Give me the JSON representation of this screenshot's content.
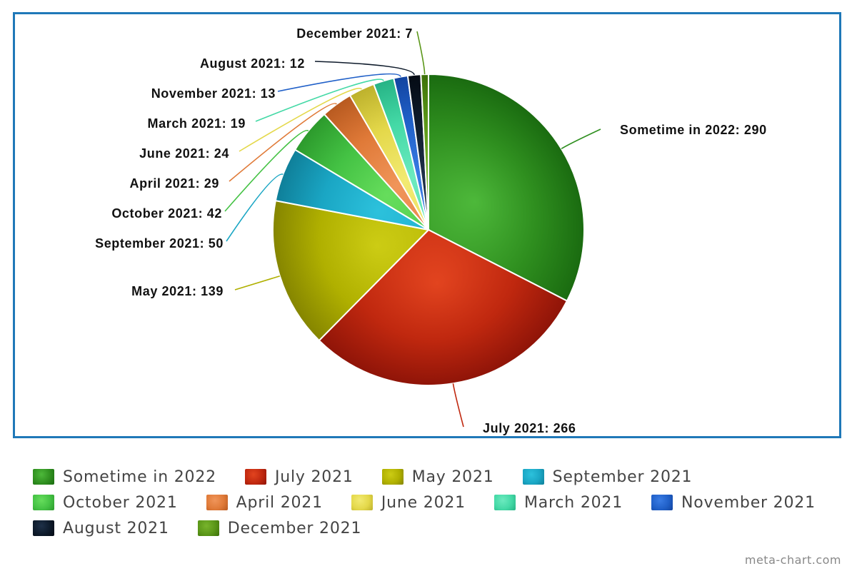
{
  "chart_data": {
    "type": "pie",
    "title": "",
    "start_category": "Sometime in 2022",
    "slices": [
      {
        "label": "Sometime in 2022",
        "value": 290,
        "data_label": "Sometime in 2022: 290",
        "color": "#2f8f1f",
        "color_light": "#4db83a",
        "color_dark": "#1a6b10"
      },
      {
        "label": "July 2021",
        "value": 266,
        "data_label": "July 2021: 266",
        "color": "#c0280f",
        "color_light": "#e2441f",
        "color_dark": "#8f1408"
      },
      {
        "label": "May 2021",
        "value": 139,
        "data_label": "May 2021: 139",
        "color": "#b0b000",
        "color_light": "#cccc14",
        "color_dark": "#858500"
      },
      {
        "label": "September 2021",
        "value": 50,
        "data_label": "September 2021: 50",
        "color": "#1aa6c4",
        "color_light": "#2cc1dc",
        "color_dark": "#0f7f99"
      },
      {
        "label": "October 2021",
        "value": 42,
        "data_label": "October 2021: 42",
        "color": "#44c244",
        "color_light": "#66dd5c",
        "color_dark": "#2c9a2c"
      },
      {
        "label": "April 2021",
        "value": 29,
        "data_label": "April 2021: 29",
        "color": "#e07a38",
        "color_light": "#f0955a",
        "color_dark": "#b85a20"
      },
      {
        "label": "June 2021",
        "value": 24,
        "data_label": "June 2021: 24",
        "color": "#e4d84a",
        "color_light": "#f2ea72",
        "color_dark": "#bdb12c"
      },
      {
        "label": "March 2021",
        "value": 19,
        "data_label": "March 2021: 19",
        "color": "#44d9a6",
        "color_light": "#6ceabf",
        "color_dark": "#26b385"
      },
      {
        "label": "November 2021",
        "value": 13,
        "data_label": "November 2021: 13",
        "color": "#2060c8",
        "color_light": "#3a7ce4",
        "color_dark": "#1244a0"
      },
      {
        "label": "August 2021",
        "value": 12,
        "data_label": "August 2021: 12",
        "color": "#0d1a2a",
        "color_light": "#1e3048",
        "color_dark": "#050b14"
      },
      {
        "label": "December 2021",
        "value": 7,
        "data_label": "December 2021: 7",
        "color": "#5a9618",
        "color_light": "#78b42c",
        "color_dark": "#3c7008"
      }
    ],
    "legend": {
      "placement": "bottom",
      "rows": [
        [
          "Sometime in 2022",
          "July 2021",
          "May 2021",
          "September 2021"
        ],
        [
          "October 2021",
          "April 2021",
          "June 2021",
          "March 2021",
          "November 2021"
        ],
        [
          "August 2021",
          "December 2021"
        ]
      ]
    }
  },
  "watermark": "meta-chart.com"
}
